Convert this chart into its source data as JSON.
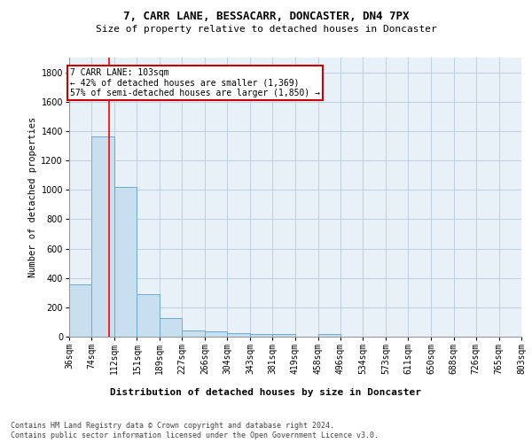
{
  "title": "7, CARR LANE, BESSACARR, DONCASTER, DN4 7PX",
  "subtitle": "Size of property relative to detached houses in Doncaster",
  "xlabel": "Distribution of detached houses by size in Doncaster",
  "ylabel": "Number of detached properties",
  "bar_color": "#c8dff0",
  "bar_edge_color": "#6aaad4",
  "property_line_x": 103,
  "annotation_title": "7 CARR LANE: 103sqm",
  "annotation_line1": "← 42% of detached houses are smaller (1,369)",
  "annotation_line2": "57% of semi-detached houses are larger (1,850) →",
  "annotation_box_color": "#cc0000",
  "ylim": [
    0,
    1900
  ],
  "bins": [
    36,
    74,
    112,
    151,
    189,
    227,
    266,
    304,
    343,
    381,
    419,
    458,
    496,
    534,
    573,
    611,
    650,
    688,
    726,
    765,
    803
  ],
  "bar_heights": [
    355,
    1365,
    1020,
    290,
    125,
    40,
    35,
    25,
    20,
    20,
    0,
    20,
    0,
    0,
    0,
    0,
    0,
    0,
    0,
    0
  ],
  "footer1": "Contains HM Land Registry data © Crown copyright and database right 2024.",
  "footer2": "Contains public sector information licensed under the Open Government Licence v3.0.",
  "background_color": "#e8f0f8",
  "grid_color": "#c0d0e0",
  "title_fontsize": 9,
  "subtitle_fontsize": 8,
  "ylabel_fontsize": 7.5,
  "tick_fontsize": 7,
  "annotation_fontsize": 7,
  "xlabel_fontsize": 8,
  "footer_fontsize": 6
}
